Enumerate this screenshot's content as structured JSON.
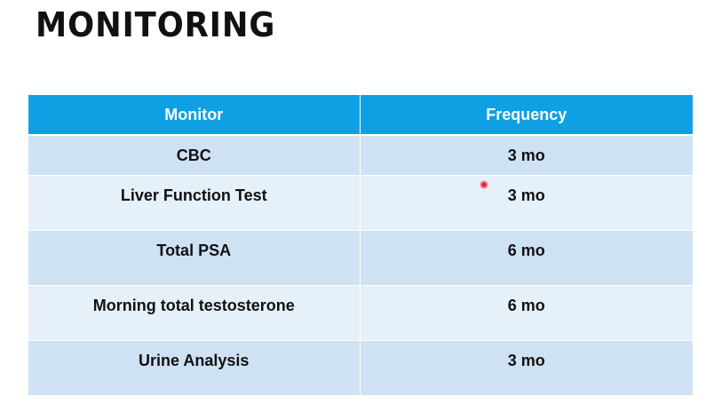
{
  "title": "MONITORING",
  "table": {
    "headers": [
      "Monitor",
      "Frequency"
    ],
    "rows": [
      {
        "monitor": "CBC",
        "frequency": "3 mo"
      },
      {
        "monitor": "Liver Function Test",
        "frequency": "3 mo"
      },
      {
        "monitor": "Total PSA",
        "frequency": "6 mo"
      },
      {
        "monitor": "Morning total testosterone",
        "frequency": "6 mo"
      },
      {
        "monitor": "Urine Analysis",
        "frequency": "3 mo"
      }
    ]
  },
  "colors": {
    "header_bg": "#0ea0e3",
    "row_odd": "#cfe2f3",
    "row_even": "#e6f0f9"
  }
}
